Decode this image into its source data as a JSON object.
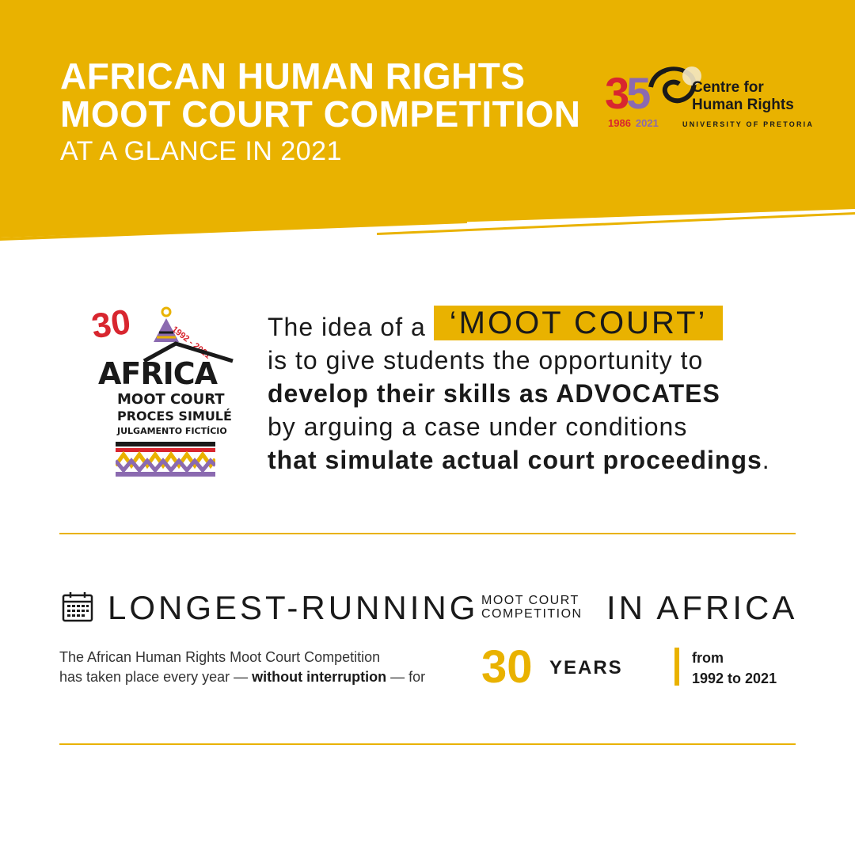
{
  "header": {
    "title_line1": "AFRICAN HUMAN RIGHTS",
    "title_line2": "MOOT COURT COMPETITION",
    "subtitle": "AT A GLANCE IN 2021"
  },
  "chr_logo": {
    "number": "35",
    "digit_a": "3",
    "digit_b": "5",
    "year_start": "1986",
    "year_end": "2021",
    "name_line1": "Centre for",
    "name_line2": "Human Rights",
    "university": "UNIVERSITY OF PRETORIA"
  },
  "moot_logo": {
    "number": "30",
    "years": "1992 - 2021",
    "word": "AFRICA",
    "line1": "MOOT COURT",
    "line2": "PROCES SIMULÉ",
    "line3": "JULGAMENTO FICTÍCIO"
  },
  "intro": {
    "prefix": "The idea of a",
    "highlight": "‘MOOT COURT’",
    "line2": "is to give students the opportunity to",
    "line3": "develop their skills as ADVOCATES",
    "line4": "by arguing a case under conditions",
    "line5_bold": "that simulate actual court proceedings",
    "line5_end": "."
  },
  "longest": {
    "main": "LONGEST-RUNNING",
    "mini_line1": "MOOT COURT",
    "mini_line2": "COMPETITION",
    "end": "IN AFRICA",
    "icon": "calendar-icon"
  },
  "stats": {
    "desc_line1": "The African Human Rights Moot Court Competition",
    "desc_line2_a": "has taken place every year —",
    "desc_line2_bold": "without interruption",
    "desc_line2_b": "— for",
    "years_number": "30",
    "years_label": "YEARS",
    "from_label": "from",
    "range": "1992 to 2021"
  },
  "colors": {
    "accent": "#e9b200",
    "red": "#d8262f",
    "purple": "#8b6ab0"
  }
}
